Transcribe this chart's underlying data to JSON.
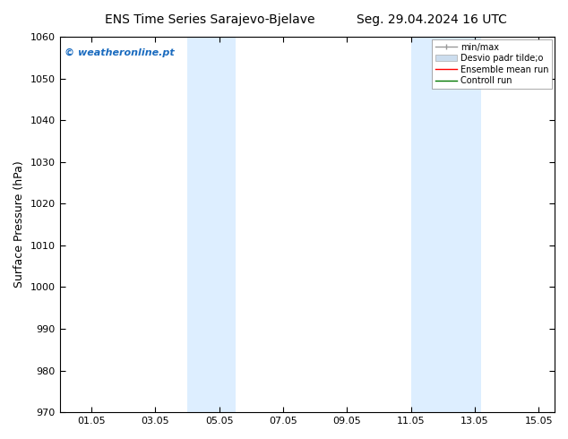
{
  "title_left": "ENS Time Series Sarajevo-Bjelave",
  "title_right": "Seg. 29.04.2024 16 UTC",
  "ylabel": "Surface Pressure (hPa)",
  "ylim": [
    970,
    1060
  ],
  "yticks": [
    970,
    980,
    990,
    1000,
    1010,
    1020,
    1030,
    1040,
    1050,
    1060
  ],
  "xtick_labels": [
    "01.05",
    "03.05",
    "05.05",
    "07.05",
    "09.05",
    "11.05",
    "13.05",
    "15.05"
  ],
  "xtick_positions": [
    1,
    3,
    5,
    7,
    9,
    11,
    13,
    15
  ],
  "xlim": [
    0,
    15.5
  ],
  "shade_bands": [
    {
      "start": 4.0,
      "end": 5.5
    },
    {
      "start": 11.0,
      "end": 13.2
    }
  ],
  "shade_color": "#ddeeff",
  "watermark": "© weatheronline.pt",
  "watermark_color": "#1a6bbf",
  "legend_entries": [
    "min/max",
    "Desvio padr tilde;o",
    "Ensemble mean run",
    "Controll run"
  ],
  "bg_color": "#ffffff",
  "title_fontsize": 10,
  "ylabel_fontsize": 9,
  "tick_fontsize": 8,
  "watermark_fontsize": 8
}
